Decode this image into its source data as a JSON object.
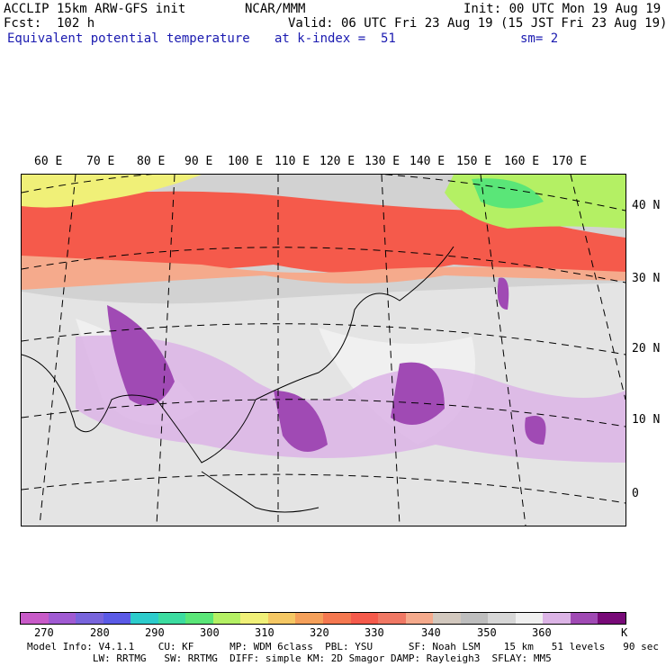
{
  "header": {
    "line1_left": "ACCLIP 15km ARW-GFS init",
    "line1_center": "NCAR/MMM",
    "line1_right": "Init: 00 UTC Mon 19 Aug 19",
    "line2_left": "Fcst:  102 h",
    "line2_right": "Valid: 06 UTC Fri 23 Aug 19 (15 JST Fri 23 Aug 19)",
    "field": "Equivalent potential temperature",
    "level": "at k-index =  51",
    "smooth": "sm= 2"
  },
  "map": {
    "lon_labels": [
      "60 E",
      "70 E",
      "80 E",
      "90 E",
      "100 E",
      "110 E",
      "120 E",
      "130 E",
      "140 E",
      "150 E",
      "160 E",
      "170 E"
    ],
    "lat_labels": [
      "40 N",
      "30 N",
      "20 N",
      "10 N",
      "0"
    ]
  },
  "colorbar": {
    "colors": [
      "#c85ac8",
      "#a05ad2",
      "#7864dc",
      "#5a5ae6",
      "#2ccccc",
      "#3cdca0",
      "#5ae678",
      "#b4f064",
      "#f0f078",
      "#f5c864",
      "#f5a05a",
      "#f57850",
      "#f55a4b",
      "#f07864",
      "#f5aa8c",
      "#d2c8be",
      "#bebebe",
      "#d7d7d7",
      "#f0f0f0",
      "#dcb4e6",
      "#a04ab4",
      "#780a78"
    ],
    "labels": [
      "270",
      "280",
      "290",
      "300",
      "310",
      "320",
      "330",
      "340",
      "350",
      "360",
      "K"
    ]
  },
  "footer": {
    "line1": "Model Info: V4.1.1    CU: KF      MP: WDM 6class  PBL: YSU      SF: Noah LSM    15 km   51 levels   90 sec",
    "line2": "           LW: RRTMG   SW: RRTMG  DIFF: simple KM: 2D Smagor DAMP: Rayleigh3  SFLAY: MM5"
  }
}
